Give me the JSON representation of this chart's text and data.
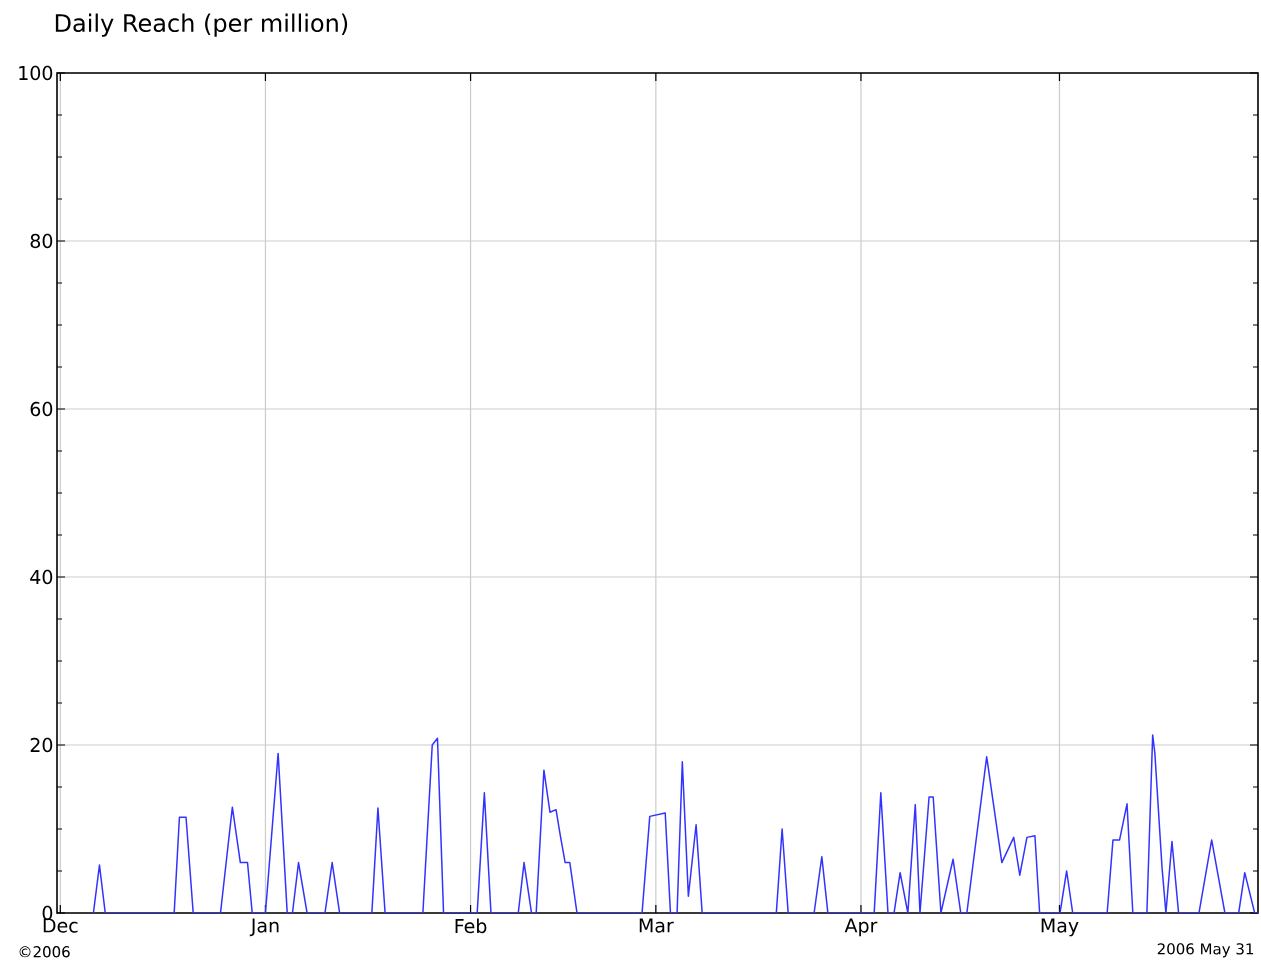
{
  "chart_data": {
    "type": "line",
    "title": "Daily Reach (per million)",
    "annotations": [
      "©2006",
      "2006 May 31"
    ],
    "xlim": [
      "2005-11-30T12:00",
      "2006-05-31T00:00"
    ],
    "ylim": [
      0,
      100
    ],
    "xticks": [
      {
        "value": "2005-12-01",
        "label": "Dec"
      },
      {
        "value": "2006-01-01",
        "label": "Jan"
      },
      {
        "value": "2006-02-01",
        "label": "Feb"
      },
      {
        "value": "2006-03-01",
        "label": "Mar"
      },
      {
        "value": "2006-04-01",
        "label": "Apr"
      },
      {
        "value": "2006-05-01",
        "label": "May"
      }
    ],
    "yticks": [
      0,
      20,
      40,
      60,
      80,
      100
    ],
    "grid": true,
    "marker": "none",
    "line_style": "solid",
    "series": [
      {
        "color": "#3333ff",
        "x": [
          "2005-12-06T00:00",
          "2005-12-06T22:00",
          "2005-12-07T19:00",
          "2005-12-18T05:00",
          "2005-12-19T00:00",
          "2005-12-20T00:00",
          "2005-12-21T02:00",
          "2005-12-25T05:00",
          "2005-12-27T00:00",
          "2005-12-28T05:00",
          "2005-12-29T07:00",
          "2005-12-30T00:00",
          "2006-01-01T00:00",
          "2006-01-02T22:00",
          "2006-01-04T07:00",
          "2006-01-05T02:00",
          "2006-01-06T00:00",
          "2006-01-07T07:00",
          "2006-01-10T00:00",
          "2006-01-11T02:00",
          "2006-01-12T05:00",
          "2006-01-17T02:00",
          "2006-01-18T00:00",
          "2006-01-19T02:00",
          "2006-01-24T19:00",
          "2006-01-26T05:00",
          "2006-01-27T00:00",
          "2006-01-27T22:00",
          "2006-02-02T00:00",
          "2006-02-03T02:00",
          "2006-02-04T02:00",
          "2006-02-08T05:00",
          "2006-02-09T02:00",
          "2006-02-10T05:00",
          "2006-02-10T22:00",
          "2006-02-12T02:00",
          "2006-02-13T00:00",
          "2006-02-13T22:00",
          "2006-02-14T12:00",
          "2006-02-15T07:00",
          "2006-02-16T00:00",
          "2006-02-17T02:00",
          "2006-02-26T22:00",
          "2006-02-28T02:00",
          "2006-03-02T10:00",
          "2006-03-03T05:00",
          "2006-03-04T05:00",
          "2006-03-05T00:00",
          "2006-03-05T22:00",
          "2006-03-07T02:00",
          "2006-03-08T00:00",
          "2006-03-19T05:00",
          "2006-03-20T02:00",
          "2006-03-21T00:00",
          "2006-03-24T22:00",
          "2006-03-26T02:00",
          "2006-03-27T00:00",
          "2006-04-03T00:00",
          "2006-04-04T00:00",
          "2006-04-05T02:00",
          "2006-04-06T00:00",
          "2006-04-06T22:00",
          "2006-04-08T02:00",
          "2006-04-09T05:00",
          "2006-04-09T22:00",
          "2006-04-11T07:00",
          "2006-04-11T22:00",
          "2006-04-13T02:00",
          "2006-04-14T22:00",
          "2006-04-16T02:00",
          "2006-04-17T00:00",
          "2006-04-20T00:00",
          "2006-04-22T07:00",
          "2006-04-24T02:00",
          "2006-04-25T00:00",
          "2006-04-26T02:00",
          "2006-04-27T07:00",
          "2006-04-28T00:00",
          "2006-05-01T02:00",
          "2006-05-02T02:00",
          "2006-05-03T00:00",
          "2006-05-08T05:00",
          "2006-05-09T02:00",
          "2006-05-10T02:00",
          "2006-05-11T05:00",
          "2006-05-12T02:00",
          "2006-05-14T05:00",
          "2006-05-15T02:00",
          "2006-05-15T10:00",
          "2006-05-16T12:00",
          "2006-05-17T02:00",
          "2006-05-18T00:00",
          "2006-05-19T00:00",
          "2006-05-22T02:00",
          "2006-05-24T00:00",
          "2006-05-26T00:00",
          "2006-05-28T02:00",
          "2006-05-29T00:00",
          "2006-05-30T12:00",
          "2006-05-31T00:00"
        ],
        "values": [
          0,
          5.7,
          0,
          0,
          11.4,
          11.4,
          0,
          0,
          12.6,
          6,
          6,
          0,
          0,
          19,
          0,
          0,
          6,
          0,
          0,
          6,
          0,
          0,
          12.5,
          0,
          0,
          20,
          20.8,
          0,
          0,
          14.3,
          0,
          0,
          6,
          0,
          0,
          17,
          12,
          12.3,
          9.5,
          6,
          6,
          0,
          0,
          11.5,
          11.9,
          0,
          0,
          18,
          2,
          10.5,
          0,
          0,
          10,
          0,
          0,
          6.7,
          0,
          0,
          14.3,
          0,
          0,
          4.8,
          0,
          12.9,
          0,
          13.8,
          13.8,
          0,
          6.4,
          0,
          0,
          18.6,
          6,
          9,
          4.5,
          9,
          9.2,
          0,
          0,
          5,
          0,
          0,
          8.7,
          8.7,
          13,
          0,
          0,
          21.2,
          19,
          5.4,
          0,
          8.5,
          0,
          0,
          8.7,
          0,
          0,
          4.8,
          0,
          0
        ]
      }
    ]
  }
}
